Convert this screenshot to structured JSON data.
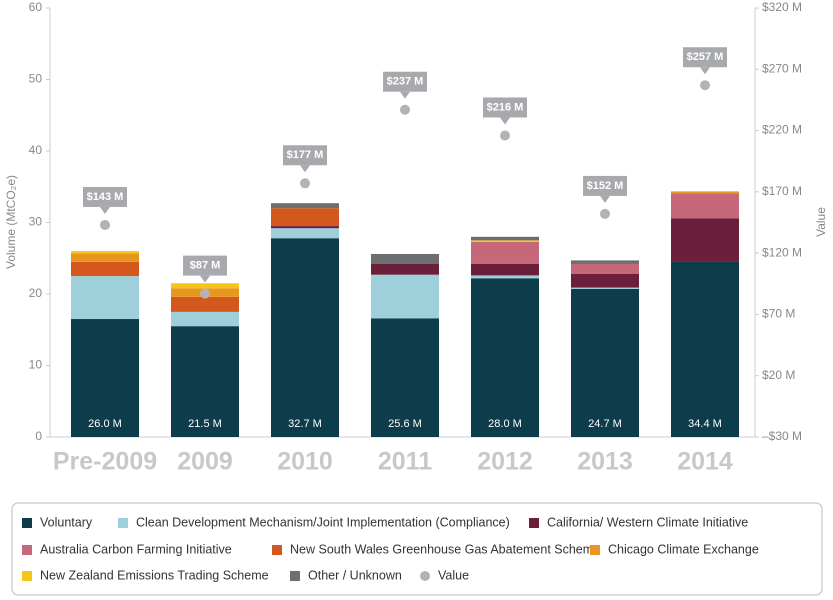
{
  "chart_data": {
    "type": "bar",
    "stacked": true,
    "y_label": "Volume (MtCO₂e)",
    "y2_label": "Value",
    "categories": [
      "Pre-2009",
      "2009",
      "2010",
      "2011",
      "2012",
      "2013",
      "2014"
    ],
    "ylim": [
      0,
      60
    ],
    "yticks": [
      0,
      10,
      20,
      30,
      40,
      50,
      60
    ],
    "y2lim": [
      -30,
      320
    ],
    "y2ticks": [
      {
        "value": -30,
        "label": "–$30 M"
      },
      {
        "value": 20,
        "label": "$20 M"
      },
      {
        "value": 70,
        "label": "$70 M"
      },
      {
        "value": 120,
        "label": "$120 M"
      },
      {
        "value": 170,
        "label": "$170 M"
      },
      {
        "value": 220,
        "label": "$220 M"
      },
      {
        "value": 270,
        "label": "$270 M"
      },
      {
        "value": 320,
        "label": "$320 M"
      }
    ],
    "series": [
      {
        "name": "Voluntary",
        "color": "#0d3c4a",
        "values": [
          16.5,
          15.5,
          27.8,
          16.6,
          22.2,
          20.7,
          24.6
        ]
      },
      {
        "name": "Clean Development Mechanism/Joint Implementation (Compliance)",
        "color": "#9dd0da",
        "values": [
          6.0,
          2.0,
          1.4,
          6.1,
          0.4,
          0.2,
          0
        ]
      },
      {
        "name": "California/ Western Climate Initiative",
        "color": "#6b1f3a",
        "values": [
          0,
          0,
          0.3,
          1.5,
          1.6,
          1.9,
          6.0
        ]
      },
      {
        "name": "Australia Carbon Farming Initiative",
        "color": "#c7677a",
        "values": [
          0,
          0,
          0,
          0,
          3.1,
          1.4,
          3.5
        ]
      },
      {
        "name": "New South Wales Greenhouse Gas Abatement Scheme",
        "color": "#d4571e",
        "values": [
          2.0,
          2.1,
          2.5,
          0,
          0,
          0,
          0
        ]
      },
      {
        "name": "Chicago Climate Exchange",
        "color": "#e8961e",
        "values": [
          1.2,
          1.2,
          0,
          0,
          0,
          0,
          0.2
        ]
      },
      {
        "name": "New Zealand Emissions Trading Scheme",
        "color": "#f5c518",
        "values": [
          0.3,
          0.7,
          0,
          0,
          0.2,
          0,
          0.1
        ]
      },
      {
        "name": "Other / Unknown",
        "color": "#6d6e70",
        "values": [
          0,
          0,
          0.7,
          1.4,
          0.5,
          0.5,
          0
        ]
      },
      {
        "name": "Value",
        "color": "#b3b3b3",
        "axis": "y2",
        "type": "scatter",
        "values": [
          143,
          87,
          177,
          237,
          216,
          152,
          257
        ],
        "value_labels": [
          "$143 M",
          "$87 M",
          "$177 M",
          "$237 M",
          "$216 M",
          "$152 M",
          "$257 M"
        ]
      }
    ],
    "totals": {
      "values": [
        26.0,
        21.5,
        32.7,
        25.6,
        28.0,
        24.7,
        34.4
      ],
      "value_labels": [
        "26.0 M",
        "21.5 M",
        "32.7 M",
        "25.6 M",
        "28.0 M",
        "24.7 M",
        "34.4 M"
      ]
    }
  }
}
